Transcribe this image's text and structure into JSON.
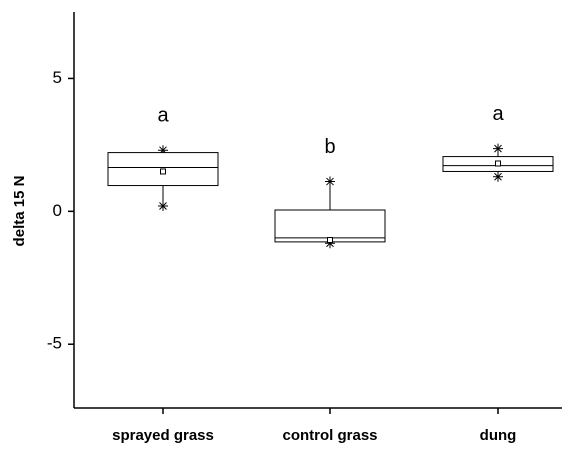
{
  "chart_data": {
    "type": "box",
    "y_label": "delta 15 N",
    "categories": [
      "sprayed grass",
      "control grass",
      "dung"
    ],
    "boxes": [
      {
        "min": 0.2,
        "q1": 0.97,
        "median": 1.65,
        "mean": 1.5,
        "q3": 2.21,
        "max": 2.3
      },
      {
        "min": -1.2,
        "q1": -1.15,
        "median": -1.0,
        "mean": -1.08,
        "q3": 0.05,
        "max": 1.12
      },
      {
        "min": 1.3,
        "q1": 1.5,
        "median": 1.72,
        "mean": 1.8,
        "q3": 2.06,
        "max": 2.36
      }
    ],
    "group_letters": [
      "a",
      "b",
      "a"
    ],
    "ylim": [
      -7.4,
      7.5
    ],
    "yticks": [
      -5,
      0,
      5
    ],
    "color": "#000000"
  }
}
